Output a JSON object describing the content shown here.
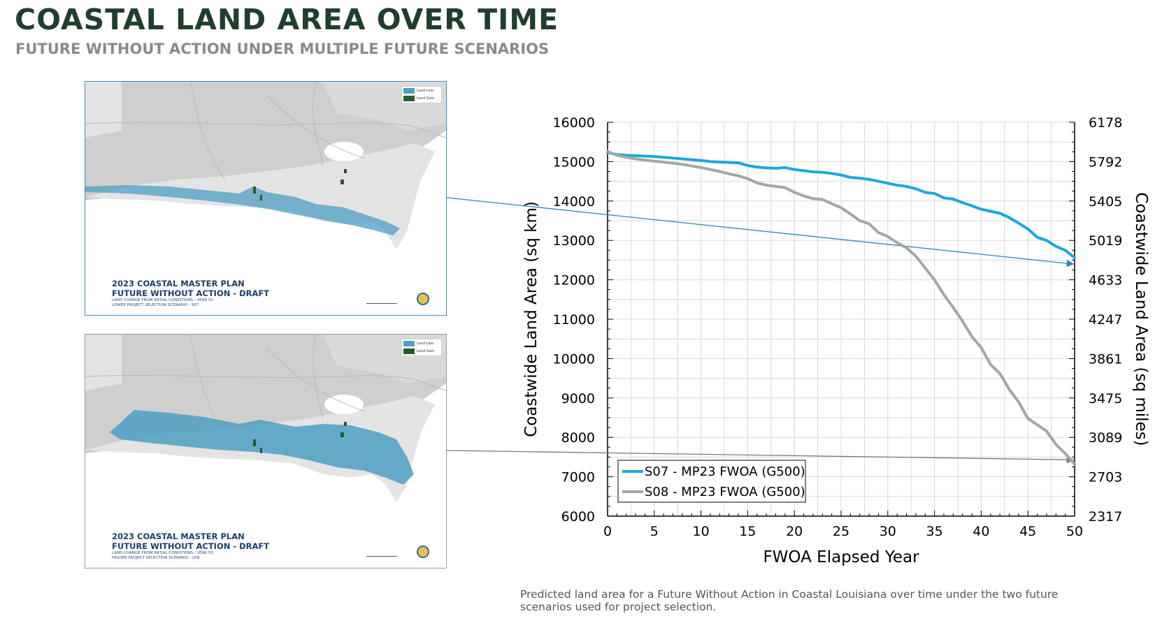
{
  "header": {
    "title": "COASTAL LAND AREA OVER TIME",
    "subtitle": "FUTURE WITHOUT ACTION UNDER MULTIPLE FUTURE SCENARIOS"
  },
  "maps": [
    {
      "caption_line1": "2023 COASTAL MASTER PLAN",
      "caption_line2": "FUTURE WITHOUT ACTION - DRAFT",
      "caption_line3": "LAND CHANGE FROM INITIAL CONDITIONS - YEAR 50",
      "caption_line4": "LOWER PROJECT SELECTION SCENARIO - S07",
      "legend_loss": "Land Loss",
      "legend_gain": "Land Gain",
      "loss_color": "#4f9fc4",
      "gain_color": "#2a5a2a",
      "loss_extent": "light"
    },
    {
      "caption_line1": "2023 COASTAL MASTER PLAN",
      "caption_line2": "FUTURE WITHOUT ACTION - DRAFT",
      "caption_line3": "LAND CHANGE FROM INITIAL CONDITIONS - YEAR 50",
      "caption_line4": "HIGHER PROJECT SELECTION SCENARIO - S08",
      "legend_loss": "Land Loss",
      "legend_gain": "Land Gain",
      "loss_color": "#4f9fc4",
      "gain_color": "#2a5a2a",
      "loss_extent": "heavy"
    }
  ],
  "chart_data": {
    "type": "line",
    "xlabel": "FWOA Elapsed Year",
    "ylabel": "Coastwide Land Area (sq km)",
    "y2label": "Coastwide Land Area (sq miles)",
    "xlim": [
      0,
      50
    ],
    "ylim": [
      6000,
      16000
    ],
    "x_ticks": [
      "0",
      "5",
      "10",
      "15",
      "20",
      "25",
      "30",
      "35",
      "40",
      "45",
      "50"
    ],
    "y_ticks": [
      "6000",
      "7000",
      "8000",
      "9000",
      "10000",
      "11000",
      "12000",
      "13000",
      "14000",
      "15000",
      "16000"
    ],
    "y2_ticks": [
      "2317",
      "2703",
      "3089",
      "3475",
      "3861",
      "4247",
      "4633",
      "5019",
      "5405",
      "5792",
      "6178"
    ],
    "grid": true,
    "legend_position": "bottom-left",
    "series": [
      {
        "name": "S07 - MP23 FWOA (G500)",
        "color": "#1ba8dd",
        "x": [
          0,
          1,
          2,
          3,
          4,
          5,
          6,
          7,
          8,
          9,
          10,
          11,
          12,
          13,
          14,
          15,
          16,
          17,
          18,
          19,
          20,
          21,
          22,
          23,
          24,
          25,
          26,
          27,
          28,
          29,
          30,
          31,
          32,
          33,
          34,
          35,
          36,
          37,
          38,
          39,
          40,
          41,
          42,
          43,
          44,
          45,
          46,
          47,
          48,
          49,
          50
        ],
        "values": [
          15230,
          15180,
          15160,
          15150,
          15140,
          15130,
          15110,
          15090,
          15070,
          15050,
          15030,
          15000,
          14990,
          14980,
          14970,
          14900,
          14860,
          14840,
          14830,
          14850,
          14800,
          14770,
          14740,
          14730,
          14700,
          14660,
          14600,
          14580,
          14550,
          14500,
          14450,
          14400,
          14370,
          14310,
          14220,
          14190,
          14080,
          14050,
          13960,
          13880,
          13790,
          13740,
          13690,
          13580,
          13440,
          13290,
          13080,
          13000,
          12850,
          12750,
          12560
        ]
      },
      {
        "name": "S08 - MP23 FWOA (G500)",
        "color": "#a6a6a6",
        "x": [
          0,
          1,
          2,
          3,
          4,
          5,
          6,
          7,
          8,
          9,
          10,
          11,
          12,
          13,
          14,
          15,
          16,
          17,
          18,
          19,
          20,
          21,
          22,
          23,
          24,
          25,
          26,
          27,
          28,
          29,
          30,
          31,
          32,
          33,
          34,
          35,
          36,
          37,
          38,
          39,
          40,
          41,
          42,
          43,
          44,
          45,
          46,
          47,
          48,
          49,
          50
        ],
        "values": [
          15260,
          15160,
          15110,
          15070,
          15040,
          15010,
          14990,
          14960,
          14930,
          14890,
          14850,
          14800,
          14750,
          14690,
          14640,
          14570,
          14460,
          14400,
          14370,
          14340,
          14220,
          14130,
          14060,
          14040,
          13930,
          13830,
          13670,
          13500,
          13420,
          13200,
          13100,
          12940,
          12810,
          12600,
          12300,
          12000,
          11620,
          11300,
          10950,
          10560,
          10280,
          9850,
          9620,
          9220,
          8900,
          8480,
          8320,
          8160,
          7820,
          7590,
          7320
        ]
      }
    ],
    "annotations": [
      {
        "from": "map-1",
        "to_x": 50,
        "to_y": 12400,
        "color": "#2b86b8"
      },
      {
        "from": "map-2",
        "to_x": 50,
        "to_y": 7430,
        "color": "#7a7a7a"
      }
    ]
  },
  "caption_line1": "Predicted land area for a Future Without Action in Coastal Louisiana over time under the two future",
  "caption_line2": "scenarios used for project selection."
}
